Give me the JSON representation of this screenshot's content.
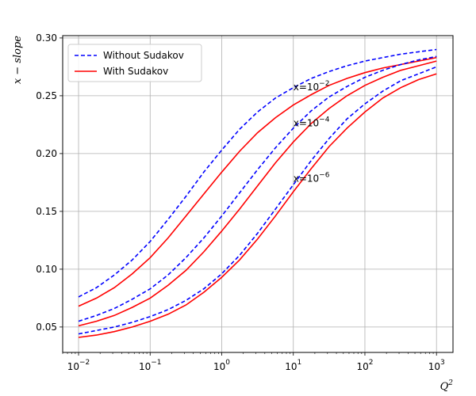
{
  "chart_data": {
    "type": "line",
    "title": "",
    "xlabel": "Q",
    "xlabel_sup": "2",
    "ylabel": "x − slope",
    "xscale": "log",
    "xlim": [
      0.006,
      1700
    ],
    "ylim": [
      0.028,
      0.302
    ],
    "grid": true,
    "legend_position": "top-left",
    "x_ticks": [
      {
        "value": 0.01,
        "base": "10",
        "exp": "−2"
      },
      {
        "value": 0.1,
        "base": "10",
        "exp": "−1"
      },
      {
        "value": 1,
        "base": "10",
        "exp": "0"
      },
      {
        "value": 10,
        "base": "10",
        "exp": "1"
      },
      {
        "value": 100,
        "base": "10",
        "exp": "2"
      },
      {
        "value": 1000,
        "base": "10",
        "exp": "3"
      }
    ],
    "y_ticks": [
      {
        "value": 0.05,
        "label": "0.05"
      },
      {
        "value": 0.1,
        "label": "0.10"
      },
      {
        "value": 0.15,
        "label": "0.15"
      },
      {
        "value": 0.2,
        "label": "0.20"
      },
      {
        "value": 0.25,
        "label": "0.25"
      },
      {
        "value": 0.3,
        "label": "0.30"
      }
    ],
    "x": [
      0.01,
      0.01778,
      0.03162,
      0.05623,
      0.1,
      0.1778,
      0.3162,
      0.5623,
      1,
      1.778,
      3.162,
      5.623,
      10,
      17.78,
      31.62,
      56.23,
      100,
      177.8,
      316.2,
      562.3,
      1000
    ],
    "series": [
      {
        "name": "Without Sudakov",
        "group": "x=10^-2",
        "color": "#0000ff",
        "dash": true,
        "values": [
          0.076,
          0.084,
          0.095,
          0.108,
          0.124,
          0.143,
          0.163,
          0.184,
          0.203,
          0.221,
          0.236,
          0.248,
          0.257,
          0.265,
          0.271,
          0.276,
          0.28,
          0.283,
          0.286,
          0.288,
          0.29
        ]
      },
      {
        "name": "With Sudakov",
        "group": "x=10^-2",
        "color": "#ff0000",
        "dash": false,
        "values": [
          0.068,
          0.075,
          0.084,
          0.096,
          0.11,
          0.127,
          0.146,
          0.165,
          0.184,
          0.202,
          0.218,
          0.231,
          0.242,
          0.251,
          0.259,
          0.265,
          0.27,
          0.274,
          0.277,
          0.28,
          0.283
        ]
      },
      {
        "name": "Without Sudakov",
        "group": "x=10^-4",
        "color": "#0000ff",
        "dash": true,
        "values": [
          0.055,
          0.06,
          0.066,
          0.074,
          0.083,
          0.095,
          0.11,
          0.127,
          0.146,
          0.166,
          0.186,
          0.205,
          0.222,
          0.237,
          0.249,
          0.258,
          0.266,
          0.272,
          0.277,
          0.281,
          0.284
        ]
      },
      {
        "name": "With Sudakov",
        "group": "x=10^-4",
        "color": "#ff0000",
        "dash": false,
        "values": [
          0.051,
          0.055,
          0.06,
          0.067,
          0.075,
          0.086,
          0.099,
          0.115,
          0.133,
          0.152,
          0.172,
          0.192,
          0.21,
          0.226,
          0.239,
          0.25,
          0.259,
          0.266,
          0.272,
          0.276,
          0.28
        ]
      },
      {
        "name": "Without Sudakov",
        "group": "x=10^-6",
        "color": "#0000ff",
        "dash": true,
        "values": [
          0.044,
          0.047,
          0.05,
          0.054,
          0.059,
          0.065,
          0.073,
          0.083,
          0.096,
          0.112,
          0.131,
          0.152,
          0.173,
          0.194,
          0.213,
          0.23,
          0.243,
          0.254,
          0.263,
          0.269,
          0.275
        ]
      },
      {
        "name": "With Sudakov",
        "group": "x=10^-6",
        "color": "#ff0000",
        "dash": false,
        "values": [
          0.041,
          0.043,
          0.046,
          0.05,
          0.055,
          0.061,
          0.069,
          0.08,
          0.093,
          0.108,
          0.126,
          0.146,
          0.167,
          0.187,
          0.206,
          0.222,
          0.236,
          0.248,
          0.257,
          0.264,
          0.269
        ]
      }
    ],
    "legend": [
      {
        "label": "Without Sudakov",
        "color": "#0000ff",
        "dash": true
      },
      {
        "label": "With Sudakov",
        "color": "#ff0000",
        "dash": false
      }
    ],
    "annotations": [
      {
        "prefix": "x=",
        "base": "10",
        "exp": "−2",
        "x": 10,
        "y": 0.258
      },
      {
        "prefix": "x=",
        "base": "10",
        "exp": "−4",
        "x": 10,
        "y": 0.227
      },
      {
        "prefix": "x=",
        "base": "10",
        "exp": "−6",
        "x": 10,
        "y": 0.179
      }
    ]
  }
}
